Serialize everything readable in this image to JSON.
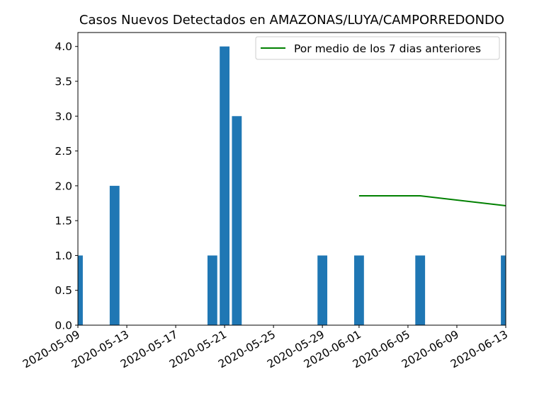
{
  "chart_data": {
    "type": "bar",
    "title": "Casos Nuevos Detectados en AMAZONAS/LUYA/CAMPORREDONDO",
    "xlabel": "",
    "ylabel": "",
    "x_start": "2020-05-09",
    "x_end": "2020-06-13",
    "ylim": [
      0,
      4.2
    ],
    "x_ticks": [
      "2020-05-09",
      "2020-05-13",
      "2020-05-17",
      "2020-05-21",
      "2020-05-25",
      "2020-05-29",
      "2020-06-01",
      "2020-06-05",
      "2020-06-09",
      "2020-06-13"
    ],
    "y_ticks": [
      "0.0",
      "0.5",
      "1.0",
      "1.5",
      "2.0",
      "2.5",
      "3.0",
      "3.5",
      "4.0"
    ],
    "bars": [
      {
        "date": "2020-05-09",
        "value": 1
      },
      {
        "date": "2020-05-12",
        "value": 2
      },
      {
        "date": "2020-05-20",
        "value": 1
      },
      {
        "date": "2020-05-21",
        "value": 4
      },
      {
        "date": "2020-05-22",
        "value": 3
      },
      {
        "date": "2020-05-29",
        "value": 1
      },
      {
        "date": "2020-06-01",
        "value": 1
      },
      {
        "date": "2020-06-06",
        "value": 1
      },
      {
        "date": "2020-06-13",
        "value": 1
      }
    ],
    "line": {
      "name": "Por medio de los 7 dias anteriores",
      "color": "#008000",
      "points": [
        {
          "date": "2020-06-01",
          "value": 1.857
        },
        {
          "date": "2020-06-06",
          "value": 1.857
        },
        {
          "date": "2020-06-13",
          "value": 1.714
        }
      ]
    },
    "bar_color": "#1f77b4",
    "grid": false,
    "legend_position": "top-right"
  }
}
